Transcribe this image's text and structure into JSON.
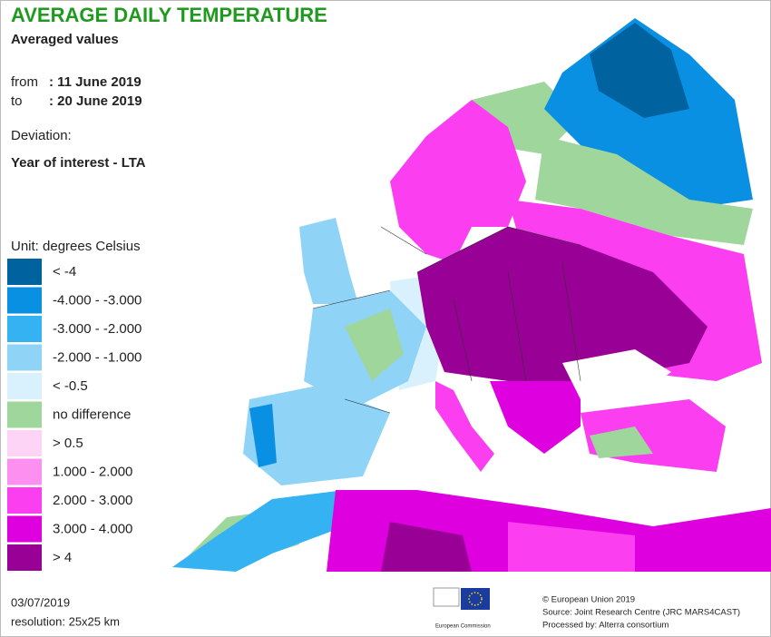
{
  "header": {
    "title": "AVERAGE DAILY TEMPERATURE",
    "subtitle": "Averaged values",
    "from_label": "from",
    "from": ": 11 June 2019",
    "to_label": "to",
    "to": ": 20 June 2019",
    "deviation_label": "Deviation:",
    "deviation": "Year of interest - LTA"
  },
  "legend": {
    "unit": "Unit: degrees Celsius",
    "items": [
      {
        "label": "< -4",
        "color": "#00629e"
      },
      {
        "label": "-4.000 - -3.000",
        "color": "#0a90e2"
      },
      {
        "label": "-3.000 - -2.000",
        "color": "#34b2f2"
      },
      {
        "label": "-2.000 - -1.000",
        "color": "#8fd4f7"
      },
      {
        "label": "< -0.5",
        "color": "#d9f1fc"
      },
      {
        "label": "no difference",
        "color": "#9fd69b"
      },
      {
        "label": "> 0.5",
        "color": "#fdd3f6"
      },
      {
        "label": "1.000 - 2.000",
        "color": "#fd8ff0"
      },
      {
        "label": "2.000 - 3.000",
        "color": "#fa3ef0"
      },
      {
        "label": "3.000 - 4.000",
        "color": "#df00df"
      },
      {
        "label": "> 4",
        "color": "#990095"
      }
    ]
  },
  "footer": {
    "date": "03/07/2019",
    "resolution": "resolution: 25x25 km",
    "logo": "European Commission",
    "copyright": "© European Union 2019",
    "source": "Source: Joint Research Centre (JRC MARS4CAST)",
    "processed": "Processed by: Alterra consortium"
  }
}
